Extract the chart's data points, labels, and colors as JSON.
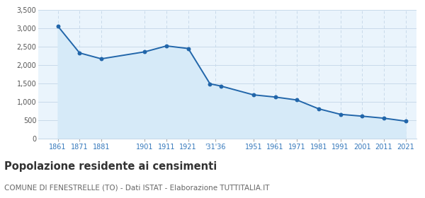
{
  "years": [
    1861,
    1871,
    1881,
    1901,
    1911,
    1921,
    1931,
    1936,
    1951,
    1961,
    1971,
    1981,
    1991,
    2001,
    2011,
    2021
  ],
  "population": [
    3059,
    2330,
    2170,
    2360,
    2520,
    2450,
    1490,
    1430,
    1190,
    1130,
    1050,
    810,
    660,
    610,
    555,
    475
  ],
  "ylim": [
    0,
    3500
  ],
  "yticks": [
    0,
    500,
    1000,
    1500,
    2000,
    2500,
    3000,
    3500
  ],
  "ytick_labels": [
    "0",
    "500",
    "1,000",
    "1,500",
    "2,000",
    "2,500",
    "3,000",
    "3,500"
  ],
  "tick_positions": [
    1861,
    1871,
    1881,
    1901,
    1911,
    1921,
    1933.5,
    1951,
    1961,
    1971,
    1981,
    1991,
    2001,
    2011,
    2021
  ],
  "tick_labels": [
    "1861",
    "1871",
    "1881",
    "1901",
    "1911",
    "1921",
    "'31'36",
    "1951",
    "1961",
    "1971",
    "1981",
    "1991",
    "2001",
    "2011",
    "2021"
  ],
  "xlim": [
    1852,
    2026
  ],
  "line_color": "#2266aa",
  "fill_color": "#d6eaf8",
  "marker_color": "#2266aa",
  "bg_color": "#eaf4fc",
  "grid_color": "#c8daea",
  "title": "Popolazione residente ai censimenti",
  "subtitle": "COMUNE DI FENESTRELLE (TO) - Dati ISTAT - Elaborazione TUTTITALIA.IT",
  "title_color": "#333333",
  "subtitle_color": "#666666",
  "tick_color": "#3377bb",
  "title_fontsize": 10.5,
  "subtitle_fontsize": 7.5
}
